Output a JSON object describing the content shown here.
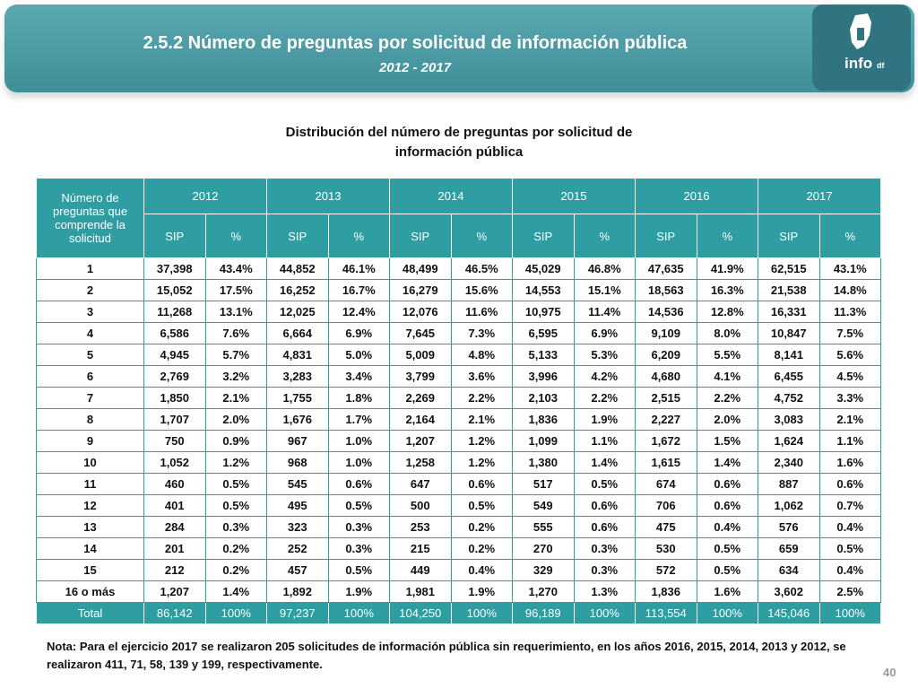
{
  "header": {
    "title": "2.5.2 Número de preguntas por solicitud de información pública",
    "subtitle": "2012 - 2017",
    "logo": {
      "main": "info",
      "suffix": "df"
    }
  },
  "table": {
    "title": "Distribución del número de preguntas por solicitud de información pública",
    "row_header": "Número de preguntas que comprende la solicitud",
    "years": [
      "2012",
      "2013",
      "2014",
      "2015",
      "2016",
      "2017"
    ],
    "sub_headers": [
      "SIP",
      "%"
    ],
    "rows": [
      [
        "1",
        "37,398",
        "43.4%",
        "44,852",
        "46.1%",
        "48,499",
        "46.5%",
        "45,029",
        "46.8%",
        "47,635",
        "41.9%",
        "62,515",
        "43.1%"
      ],
      [
        "2",
        "15,052",
        "17.5%",
        "16,252",
        "16.7%",
        "16,279",
        "15.6%",
        "14,553",
        "15.1%",
        "18,563",
        "16.3%",
        "21,538",
        "14.8%"
      ],
      [
        "3",
        "11,268",
        "13.1%",
        "12,025",
        "12.4%",
        "12,076",
        "11.6%",
        "10,975",
        "11.4%",
        "14,536",
        "12.8%",
        "16,331",
        "11.3%"
      ],
      [
        "4",
        "6,586",
        "7.6%",
        "6,664",
        "6.9%",
        "7,645",
        "7.3%",
        "6,595",
        "6.9%",
        "9,109",
        "8.0%",
        "10,847",
        "7.5%"
      ],
      [
        "5",
        "4,945",
        "5.7%",
        "4,831",
        "5.0%",
        "5,009",
        "4.8%",
        "5,133",
        "5.3%",
        "6,209",
        "5.5%",
        "8,141",
        "5.6%"
      ],
      [
        "6",
        "2,769",
        "3.2%",
        "3,283",
        "3.4%",
        "3,799",
        "3.6%",
        "3,996",
        "4.2%",
        "4,680",
        "4.1%",
        "6,455",
        "4.5%"
      ],
      [
        "7",
        "1,850",
        "2.1%",
        "1,755",
        "1.8%",
        "2,269",
        "2.2%",
        "2,103",
        "2.2%",
        "2,515",
        "2.2%",
        "4,752",
        "3.3%"
      ],
      [
        "8",
        "1,707",
        "2.0%",
        "1,676",
        "1.7%",
        "2,164",
        "2.1%",
        "1,836",
        "1.9%",
        "2,227",
        "2.0%",
        "3,083",
        "2.1%"
      ],
      [
        "9",
        "750",
        "0.9%",
        "967",
        "1.0%",
        "1,207",
        "1.2%",
        "1,099",
        "1.1%",
        "1,672",
        "1.5%",
        "1,624",
        "1.1%"
      ],
      [
        "10",
        "1,052",
        "1.2%",
        "968",
        "1.0%",
        "1,258",
        "1.2%",
        "1,380",
        "1.4%",
        "1,615",
        "1.4%",
        "2,340",
        "1.6%"
      ],
      [
        "11",
        "460",
        "0.5%",
        "545",
        "0.6%",
        "647",
        "0.6%",
        "517",
        "0.5%",
        "674",
        "0.6%",
        "887",
        "0.6%"
      ],
      [
        "12",
        "401",
        "0.5%",
        "495",
        "0.5%",
        "500",
        "0.5%",
        "549",
        "0.6%",
        "706",
        "0.6%",
        "1,062",
        "0.7%"
      ],
      [
        "13",
        "284",
        "0.3%",
        "323",
        "0.3%",
        "253",
        "0.2%",
        "555",
        "0.6%",
        "475",
        "0.4%",
        "576",
        "0.4%"
      ],
      [
        "14",
        "201",
        "0.2%",
        "252",
        "0.3%",
        "215",
        "0.2%",
        "270",
        "0.3%",
        "530",
        "0.5%",
        "659",
        "0.5%"
      ],
      [
        "15",
        "212",
        "0.2%",
        "457",
        "0.5%",
        "449",
        "0.4%",
        "329",
        "0.3%",
        "572",
        "0.5%",
        "634",
        "0.4%"
      ],
      [
        "16 o más",
        "1,207",
        "1.4%",
        "1,892",
        "1.9%",
        "1,981",
        "1.9%",
        "1,270",
        "1.3%",
        "1,836",
        "1.6%",
        "3,602",
        "2.5%"
      ]
    ],
    "total": [
      "Total",
      "86,142",
      "100%",
      "97,237",
      "100%",
      "104,250",
      "100%",
      "96,189",
      "100%",
      "113,554",
      "100%",
      "145,046",
      "100%"
    ]
  },
  "note": "Nota: Para el ejercicio 2017 se realizaron 205 solicitudes de información pública sin requerimiento, en los años 2016, 2015, 2014, 2013 y 2012, se realizaron 411, 71, 58, 139 y 199, respectivamente.",
  "page_number": "40"
}
